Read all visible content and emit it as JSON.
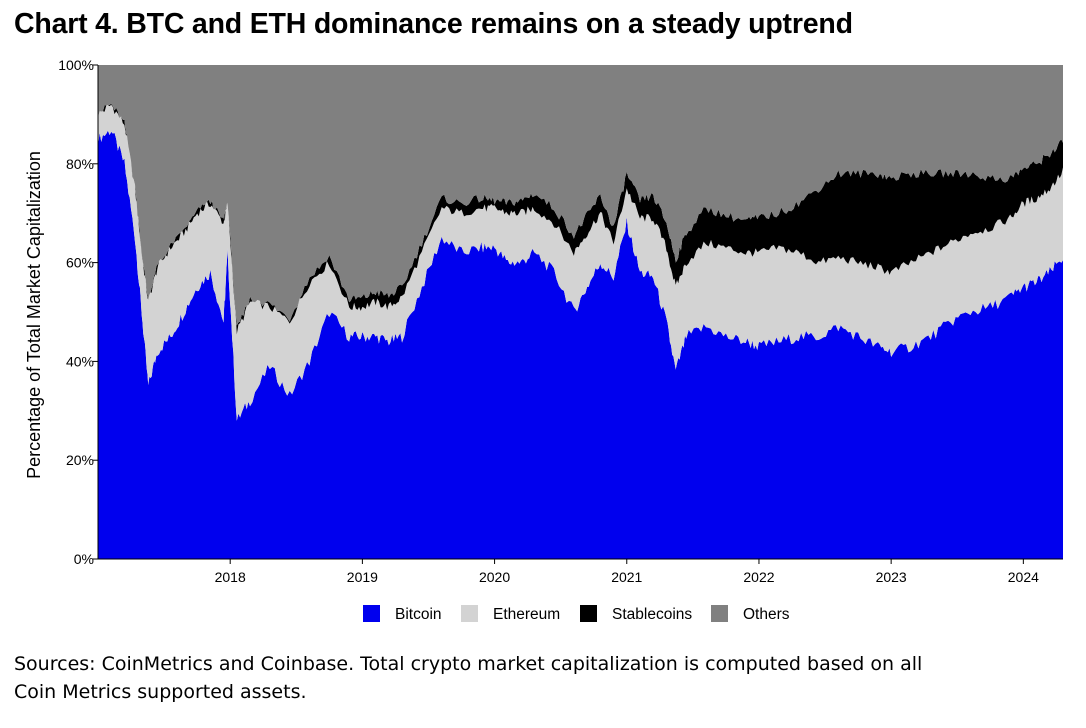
{
  "title": "Chart 4. BTC and ETH dominance remains on a steady uptrend",
  "footnote": {
    "line1": "Sources: CoinMetrics and Coinbase. Total crypto market capitalization is computed based on all",
    "line2": "Coin Metrics supported assets."
  },
  "colors": {
    "bitcoin": "#0000ee",
    "ethereum": "#d3d3d3",
    "stablecoins": "#000000",
    "others": "#808080"
  },
  "chart_data": {
    "type": "area",
    "stacked": true,
    "title": "Chart 4. BTC and ETH dominance remains on a steady uptrend",
    "xlabel": "",
    "ylabel": "Percentage of Total Market Capitalization",
    "xlim": [
      2017.0,
      2024.3
    ],
    "ylim": [
      0,
      100
    ],
    "yticks": [
      "0%",
      "20%",
      "40%",
      "60%",
      "80%",
      "100%"
    ],
    "ytick_values": [
      0,
      20,
      40,
      60,
      80,
      100
    ],
    "xticks": [
      "2018",
      "2019",
      "2020",
      "2021",
      "2022",
      "2023",
      "2024"
    ],
    "xtick_values": [
      2018,
      2019,
      2020,
      2021,
      2022,
      2023,
      2024
    ],
    "legend": [
      "Bitcoin",
      "Ethereum",
      "Stablecoins",
      "Others"
    ],
    "legend_position": "bottom-center",
    "x": [
      2017.0,
      2017.1,
      2017.2,
      2017.28,
      2017.33,
      2017.38,
      2017.45,
      2017.55,
      2017.65,
      2017.75,
      2017.85,
      2017.95,
      2017.98,
      2018.05,
      2018.15,
      2018.3,
      2018.45,
      2018.6,
      2018.75,
      2018.9,
      2019.0,
      2019.1,
      2019.2,
      2019.3,
      2019.45,
      2019.6,
      2019.75,
      2019.9,
      2020.0,
      2020.1,
      2020.2,
      2020.3,
      2020.45,
      2020.6,
      2020.7,
      2020.8,
      2020.9,
      2021.0,
      2021.1,
      2021.2,
      2021.3,
      2021.37,
      2021.45,
      2021.6,
      2021.75,
      2021.9,
      2022.0,
      2022.15,
      2022.3,
      2022.45,
      2022.6,
      2022.75,
      2022.9,
      2023.0,
      2023.15,
      2023.3,
      2023.45,
      2023.6,
      2023.75,
      2023.9,
      2024.0,
      2024.1,
      2024.2,
      2024.3
    ],
    "series": [
      {
        "name": "Bitcoin",
        "values": [
          85,
          86,
          80,
          65,
          50,
          35,
          42,
          45,
          50,
          55,
          58,
          48,
          62,
          28,
          32,
          39,
          33,
          40,
          50,
          45,
          45,
          45,
          44,
          45,
          55,
          65,
          62,
          63,
          63,
          60,
          60,
          62,
          58,
          50,
          55,
          60,
          57,
          68,
          58,
          57,
          48,
          38,
          45,
          47,
          45,
          44,
          43,
          44,
          45,
          45,
          47,
          45,
          43,
          42,
          43,
          45,
          48,
          50,
          51,
          53,
          55,
          56,
          58,
          61
        ]
      },
      {
        "name": "Ethereum",
        "values": [
          5,
          5,
          8,
          10,
          12,
          17,
          17,
          18,
          16,
          15,
          14,
          20,
          10,
          18,
          20,
          12,
          15,
          16,
          10,
          6,
          6,
          7,
          7,
          8,
          7,
          6,
          8,
          8,
          8,
          10,
          10,
          9,
          10,
          12,
          11,
          10,
          7,
          7,
          11,
          12,
          15,
          17,
          15,
          17,
          18,
          18,
          19,
          19,
          17,
          15,
          14,
          15,
          16,
          16,
          17,
          17,
          16,
          16,
          16,
          16,
          17,
          17,
          17,
          17.5
        ]
      },
      {
        "name": "Stablecoins",
        "values": [
          0.1,
          0.1,
          0.1,
          0.1,
          0.2,
          0.3,
          0.3,
          0.3,
          0.3,
          0.3,
          0.3,
          0.3,
          0.3,
          0.4,
          0.5,
          0.6,
          0.7,
          1.0,
          1.2,
          1.5,
          1.8,
          2.0,
          2.2,
          2.0,
          2.0,
          2.0,
          2.0,
          2.0,
          1.5,
          2.0,
          2.5,
          3.0,
          3.0,
          3.5,
          3.5,
          3.5,
          3.0,
          3.0,
          3.5,
          4.5,
          5.0,
          5.5,
          6.0,
          7.0,
          6.5,
          6.5,
          7.0,
          7.0,
          10.0,
          15.0,
          17.0,
          18.0,
          19.0,
          19.0,
          18.0,
          16.0,
          14.0,
          12.0,
          10.0,
          8.0,
          7.0,
          7.0,
          7.0,
          6.0
        ]
      },
      {
        "name": "Others",
        "values": [
          9.9,
          7.9,
          11.9,
          24.9,
          37.8,
          47.7,
          40.7,
          36.7,
          33.7,
          29.7,
          27.7,
          31.7,
          27.7,
          53.6,
          47.5,
          48.4,
          51.3,
          43.0,
          38.8,
          47.5,
          47.2,
          46.0,
          46.8,
          45.0,
          36.0,
          27.0,
          28.0,
          27.0,
          27.5,
          28.0,
          27.5,
          26.0,
          29.0,
          34.5,
          30.5,
          26.5,
          33.0,
          22.0,
          27.5,
          26.5,
          32.0,
          39.5,
          34.0,
          29.0,
          30.5,
          31.5,
          31.0,
          30.0,
          28.0,
          25.0,
          22.0,
          22.0,
          22.0,
          23.0,
          22.0,
          22.0,
          22.0,
          22.0,
          23.0,
          23.0,
          21.0,
          20.0,
          18.0,
          15.5
        ]
      }
    ]
  }
}
